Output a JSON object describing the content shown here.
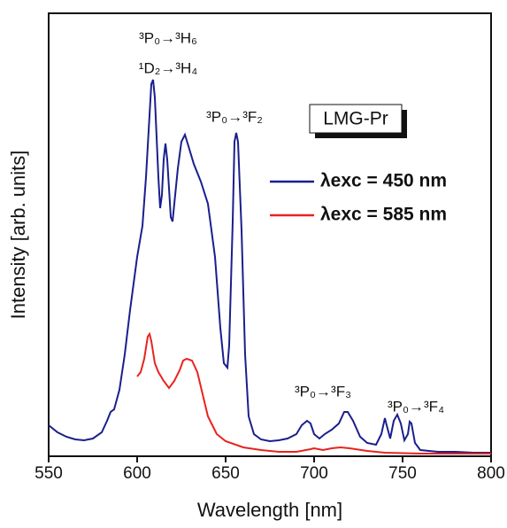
{
  "chart_data": {
    "type": "line",
    "x_label": "Wavelength [nm]",
    "y_label": "Intensity [arb. units]",
    "xlim": [
      550,
      800
    ],
    "xticks": [
      550,
      600,
      650,
      700,
      750,
      800
    ],
    "ylim": [
      0,
      500
    ],
    "series": [
      {
        "name": "λexc = 450 nm",
        "color": "#1a1f8c",
        "x": [
          550,
          555,
          560,
          565,
          570,
          575,
          580,
          583,
          585,
          587,
          590,
          593,
          596,
          600,
          603,
          605,
          607,
          608,
          609,
          610,
          612,
          613,
          614,
          615,
          616,
          617,
          619,
          620,
          621,
          623,
          625,
          627,
          629,
          632,
          636,
          640,
          644,
          647,
          649,
          651,
          652,
          654,
          655,
          656,
          657,
          659,
          661,
          663,
          666,
          670,
          675,
          680,
          685,
          690,
          693,
          696,
          698,
          700,
          703,
          706,
          710,
          714,
          717,
          719,
          722,
          726,
          730,
          735,
          738,
          740,
          741,
          743,
          745,
          747,
          749,
          751,
          753,
          754,
          755,
          757,
          760,
          770,
          780,
          790,
          800
        ],
        "values": [
          35,
          27,
          22,
          19,
          18,
          20,
          27,
          40,
          50,
          53,
          75,
          115,
          165,
          225,
          260,
          315,
          385,
          420,
          425,
          405,
          315,
          280,
          295,
          335,
          353,
          335,
          270,
          265,
          285,
          325,
          355,
          363,
          350,
          330,
          310,
          285,
          225,
          145,
          105,
          100,
          125,
          265,
          355,
          365,
          355,
          255,
          115,
          45,
          25,
          19,
          17,
          18,
          20,
          25,
          35,
          40,
          37,
          25,
          20,
          25,
          30,
          37,
          50,
          50,
          40,
          22,
          15,
          13,
          25,
          43,
          35,
          20,
          40,
          47,
          37,
          18,
          25,
          39,
          37,
          15,
          7,
          5,
          5,
          4,
          4
        ]
      },
      {
        "name": "λexc = 585 nm",
        "color": "#e8231e",
        "x": [
          600,
          602,
          604,
          606,
          607,
          608,
          610,
          612,
          615,
          618,
          621,
          624,
          626,
          628,
          631,
          634,
          637,
          640,
          645,
          650,
          660,
          670,
          680,
          690,
          698,
          700,
          705,
          710,
          715,
          720,
          730,
          740,
          760,
          780,
          800
        ],
        "values": [
          90,
          95,
          110,
          135,
          138,
          130,
          105,
          95,
          85,
          77,
          85,
          97,
          108,
          110,
          108,
          95,
          70,
          45,
          25,
          17,
          10,
          7,
          5,
          5,
          8,
          9,
          7,
          9,
          10,
          9,
          6,
          4,
          3,
          3,
          3
        ]
      }
    ],
    "sample_label": "LMG-Pr",
    "annotations": [
      "³P₀→³H₆",
      "¹D₂→³H₄",
      "³P₀→³F₂",
      "³P₀→³F₃",
      "³P₀→³F₄"
    ]
  }
}
